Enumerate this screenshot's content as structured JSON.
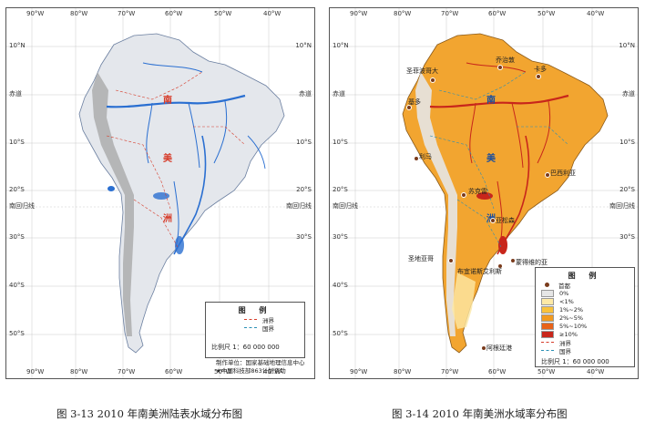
{
  "captions": {
    "left": "图 3-13  2010 年南美洲陆表水域分布图",
    "right": "图 3-14  2010 年南美洲水域率分布图"
  },
  "axis_labels": {
    "lon_top": [
      "90°W",
      "80°W",
      "70°W",
      "60°W",
      "50°W",
      "40°W"
    ],
    "lon_bottom": [
      "90°W",
      "80°W",
      "70°W",
      "60°W",
      "50°W",
      "40°W"
    ],
    "lat": [
      "10°N",
      "赤道",
      "10°S",
      "20°S",
      "南回归线",
      "30°S",
      "40°S",
      "50°S"
    ]
  },
  "continent_label": [
    "南",
    "美",
    "洲"
  ],
  "left_map": {
    "legend_title": "图  例",
    "legend_items": [
      {
        "label": "洲界",
        "color": "#d63c2a"
      },
      {
        "label": "国界",
        "color": "#2a8fb5"
      }
    ],
    "scale": "比例尺 1：60 000 000",
    "credits": [
      "制作单位：国家基础地理信息中心",
      "★中国科技部863计划资助"
    ]
  },
  "right_map": {
    "cities": [
      {
        "name": "乔治敦"
      },
      {
        "name": "圣菲波哥大"
      },
      {
        "name": "卡多"
      },
      {
        "name": "基多"
      },
      {
        "name": "利马"
      },
      {
        "name": "巴西利亚"
      },
      {
        "name": "苏克雷"
      },
      {
        "name": "亚松森"
      },
      {
        "name": "圣地亚哥"
      },
      {
        "name": "蒙得维的亚"
      },
      {
        "name": "布宜诺斯艾利斯"
      },
      {
        "name": "阿根廷港"
      }
    ],
    "legend_title": "图  例",
    "legend_items": [
      {
        "label": "首都",
        "type": "dot",
        "color": "#7a3b1c"
      },
      {
        "label": "0%",
        "type": "swatch",
        "color": "#e6e6e6"
      },
      {
        "label": "<1%",
        "type": "swatch",
        "color": "#fde9a6"
      },
      {
        "label": "1%~2%",
        "type": "swatch",
        "color": "#f9c23c"
      },
      {
        "label": "2%~5%",
        "type": "swatch",
        "color": "#f29a1f"
      },
      {
        "label": "5%~10%",
        "type": "swatch",
        "color": "#e8631a"
      },
      {
        "label": "≥10%",
        "type": "swatch",
        "color": "#c8261b"
      },
      {
        "label": "洲界",
        "type": "line",
        "color": "#d63c2a"
      },
      {
        "label": "国界",
        "type": "line",
        "color": "#2a8fb5"
      }
    ],
    "scale": "比例尺 1：60 000 000"
  },
  "colors": {
    "land_left": "#e4e7ec",
    "water_left": "#2a6fd1",
    "land_right": "#f2a530",
    "water_right": "#c8261b",
    "andes": "#a5a5a5"
  }
}
